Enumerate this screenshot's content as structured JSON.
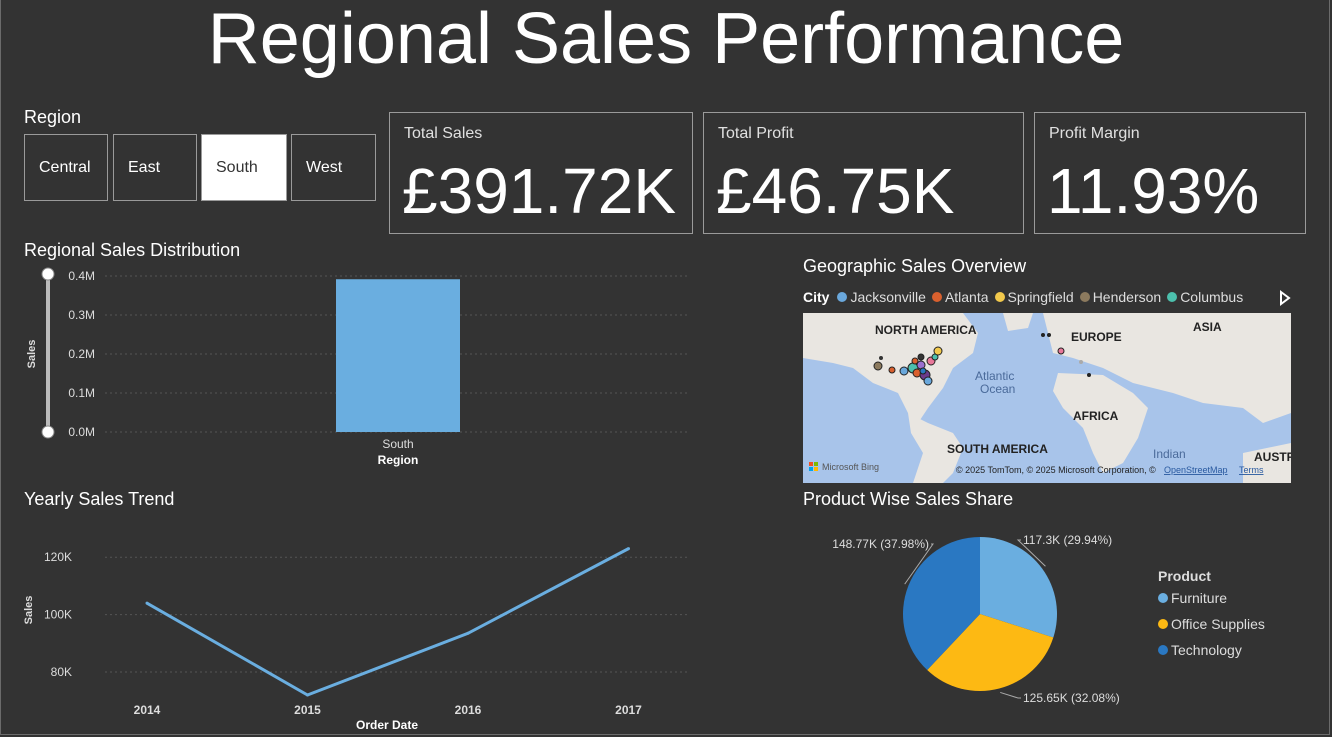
{
  "page": {
    "title": "Regional Sales Performance"
  },
  "region_slicer": {
    "title": "Region",
    "options": [
      "Central",
      "East",
      "South",
      "West"
    ],
    "selected": "South"
  },
  "cards": [
    {
      "label": "Total Sales",
      "value": "£391.72K"
    },
    {
      "label": "Total Profit",
      "value": "£46.75K"
    },
    {
      "label": "Profit Margin",
      "value": "11.93%"
    }
  ],
  "map": {
    "title": "Geographic Sales Overview",
    "legend_title": "City",
    "cities": [
      {
        "name": "Jacksonville",
        "color": "#6aa8dc"
      },
      {
        "name": "Atlanta",
        "color": "#d9602e"
      },
      {
        "name": "Springfield",
        "color": "#f2c94c"
      },
      {
        "name": "Henderson",
        "color": "#8c7a5e"
      },
      {
        "name": "Columbus",
        "color": "#4cc0ad"
      }
    ],
    "labels": {
      "north_america": "NORTH AMERICA",
      "europe": "EUROPE",
      "asia": "ASIA",
      "africa": "AFRICA",
      "south_america": "SOUTH AMERICA",
      "atlantic": "Atlantic",
      "ocean": "Ocean",
      "indian": "Indian",
      "austral": "AUSTRAL",
      "bing": "Microsoft Bing",
      "copyright": "© 2025 TomTom, © 2025 Microsoft Corporation, ©",
      "osm": "OpenStreetMap",
      "terms": "Terms"
    }
  },
  "chart_data": [
    {
      "type": "bar",
      "title": "Regional Sales Distribution",
      "categories": [
        "South"
      ],
      "values": [
        391720
      ],
      "xlabel": "Region",
      "ylabel": "Sales",
      "ylim": [
        0,
        400000
      ],
      "yticks": [
        "0.0M",
        "0.1M",
        "0.2M",
        "0.3M",
        "0.4M"
      ],
      "color": "#6aaee0",
      "grid": true
    },
    {
      "type": "line",
      "title": "Yearly Sales Trend",
      "x": [
        "2014",
        "2015",
        "2016",
        "2017"
      ],
      "values": [
        104000,
        72000,
        93500,
        123000
      ],
      "xlabel": "Order Date",
      "ylabel": "Sales",
      "ylim": [
        72000,
        126000
      ],
      "yticks": [
        {
          "v": 80000,
          "t": "80K"
        },
        {
          "v": 100000,
          "t": "100K"
        },
        {
          "v": 120000,
          "t": "120K"
        }
      ],
      "color": "#6aaee0",
      "grid": true
    },
    {
      "type": "pie",
      "title": "Product Wise Sales Share",
      "legend_title": "Product",
      "legend_position": "right",
      "slices": [
        {
          "name": "Furniture",
          "value": 117300,
          "label": "117.3K (29.94%)",
          "color": "#6aaee0"
        },
        {
          "name": "Office Supplies",
          "value": 125650,
          "label": "125.65K (32.08%)",
          "color": "#fdb913"
        },
        {
          "name": "Technology",
          "value": 148770,
          "label": "148.77K (37.98%)",
          "color": "#2a78c2"
        }
      ]
    }
  ]
}
